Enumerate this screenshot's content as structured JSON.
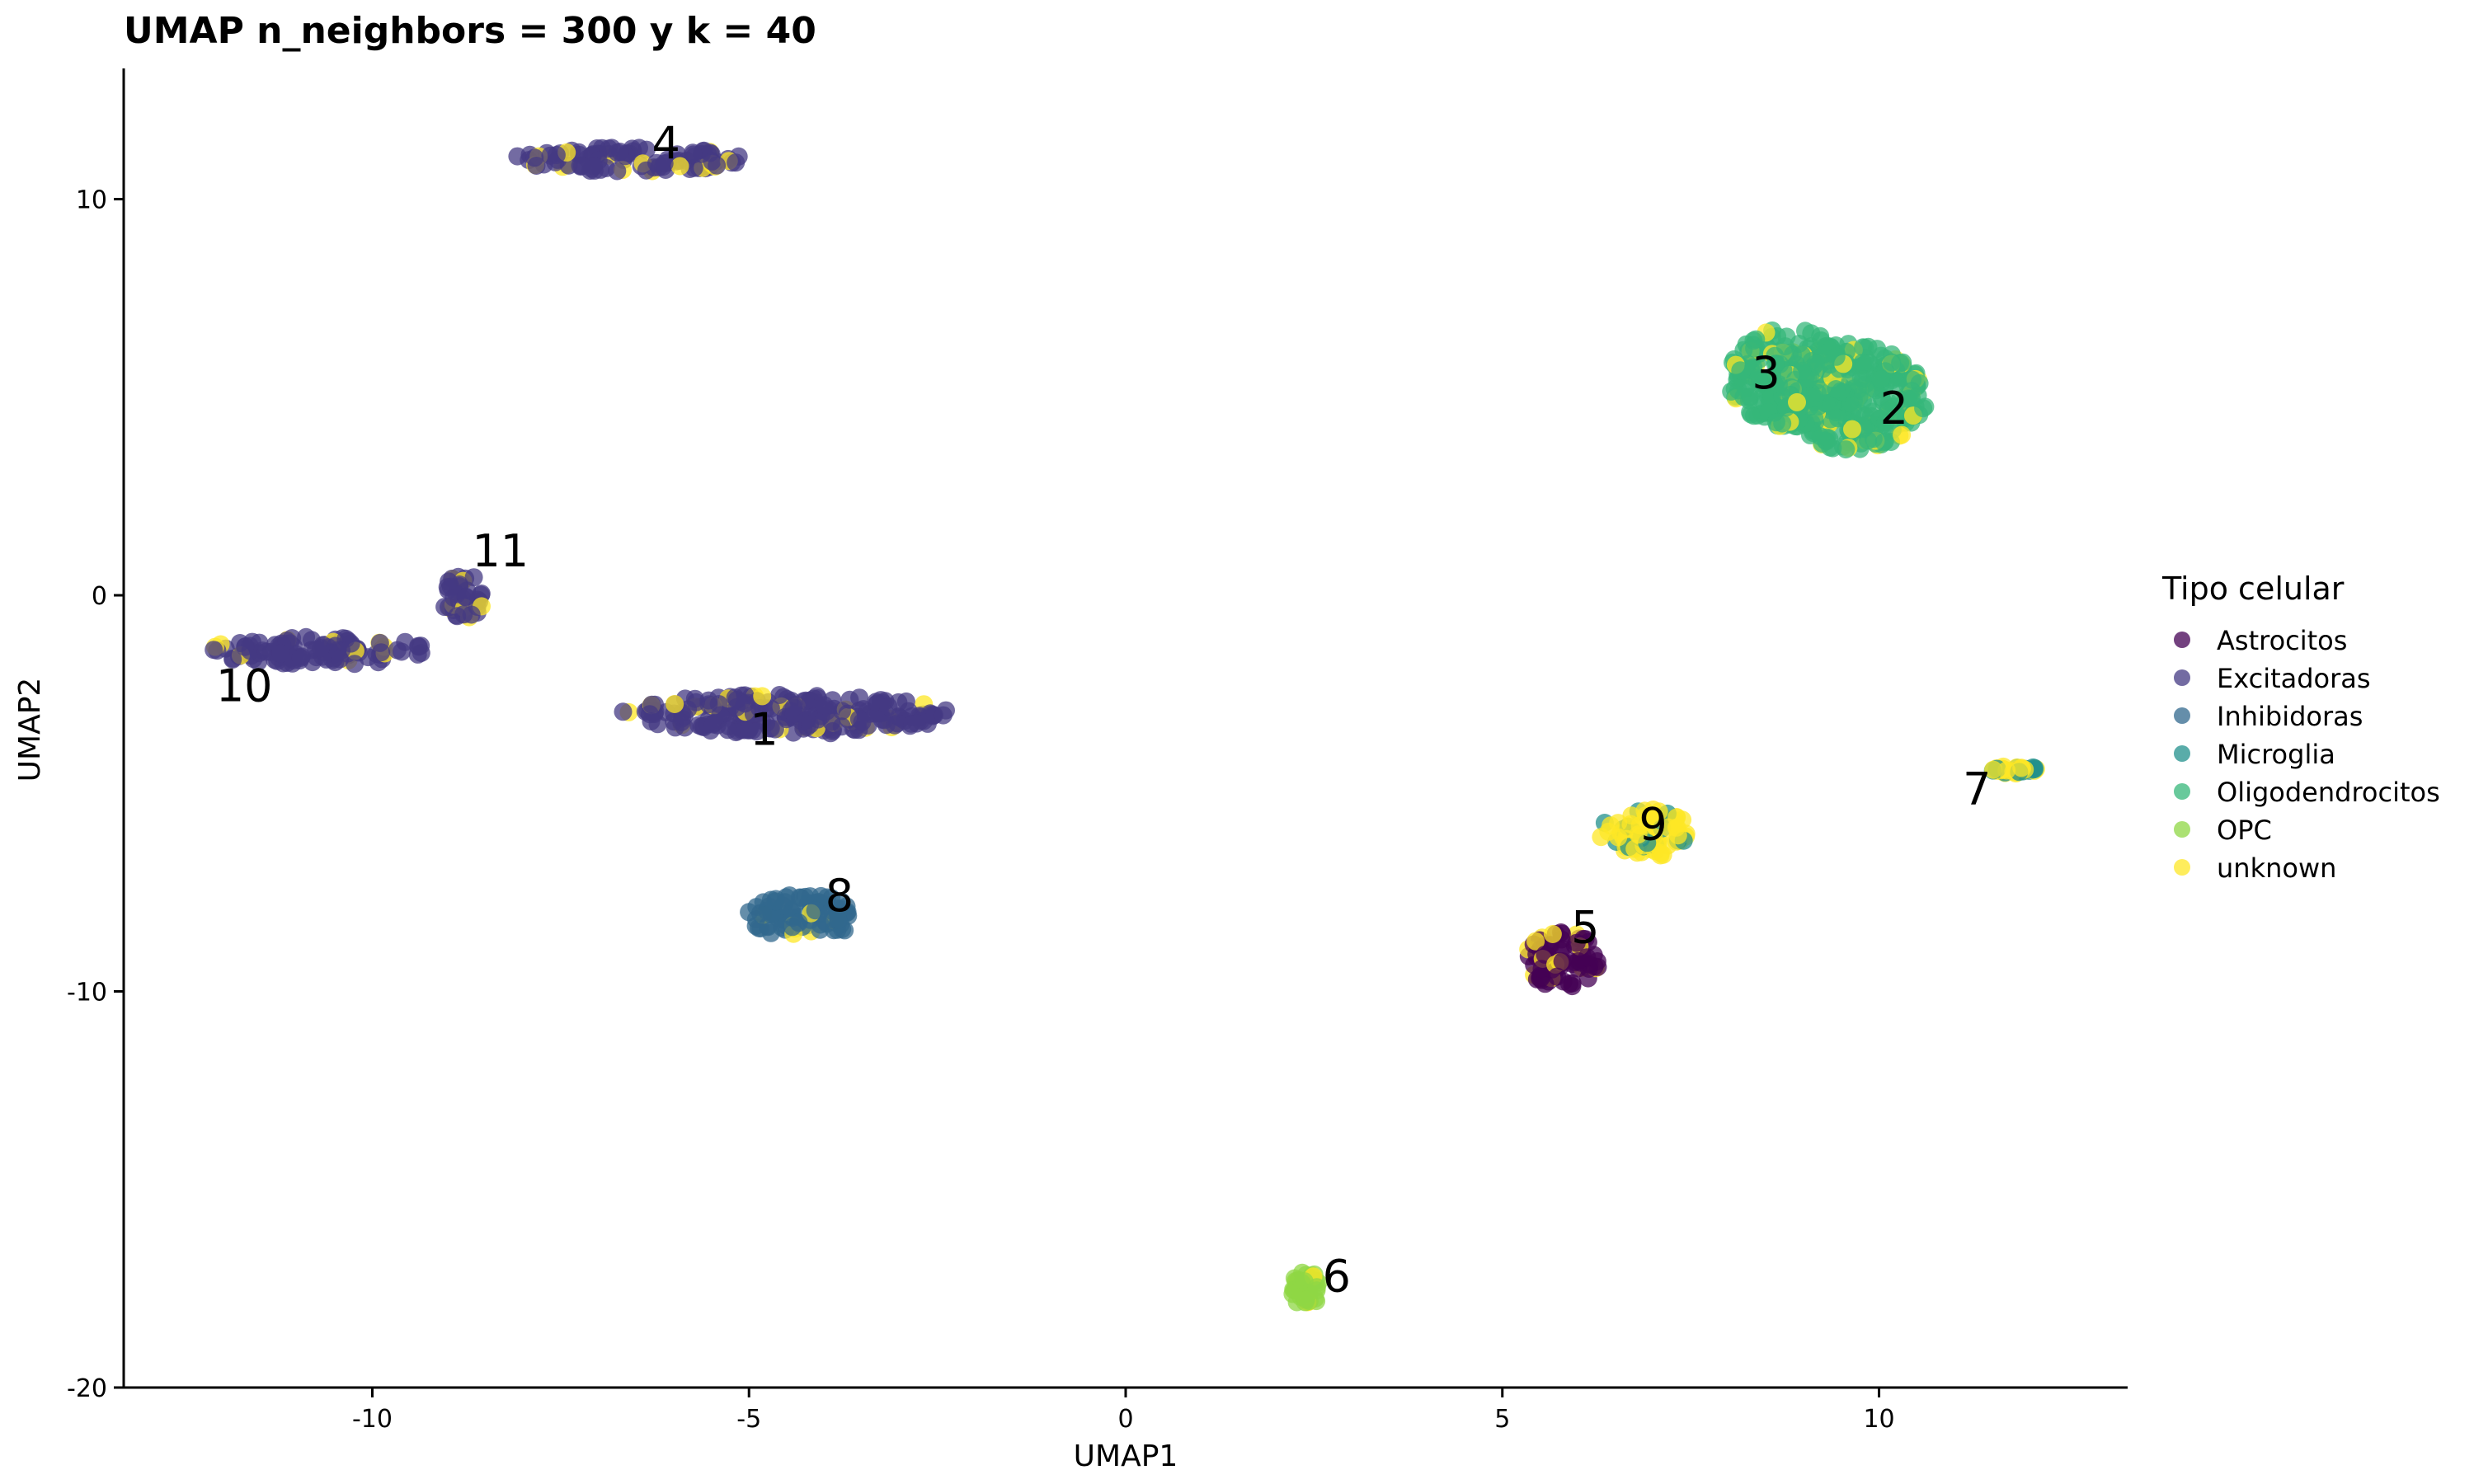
{
  "chart_data": {
    "type": "scatter",
    "title": "UMAP n_neighbors = 300 y k = 40",
    "xlabel": "UMAP1",
    "ylabel": "UMAP2",
    "xlim": [
      -13.3,
      13.3
    ],
    "ylim": [
      -20.0,
      13.3
    ],
    "xticks": [
      -10,
      -5,
      0,
      5,
      10
    ],
    "yticks": [
      -20,
      -10,
      0,
      10
    ],
    "xtick_labels": [
      "-10",
      "-5",
      "0",
      "5",
      "10"
    ],
    "ytick_labels": [
      "-20",
      "-10",
      "0",
      "10"
    ],
    "grid": false,
    "legend": {
      "title": "Tipo celular",
      "position": "right",
      "entries": [
        {
          "name": "Astrocitos",
          "color": "#440154"
        },
        {
          "name": "Excitadoras",
          "color": "#443A83"
        },
        {
          "name": "Inhibidoras",
          "color": "#31688E"
        },
        {
          "name": "Microglia",
          "color": "#21908C"
        },
        {
          "name": "Oligodendrocitos",
          "color": "#35B779"
        },
        {
          "name": "OPC",
          "color": "#8FD744"
        },
        {
          "name": "unknown",
          "color": "#FDE725"
        }
      ]
    },
    "clusters": [
      {
        "label": "1",
        "label_pos": [
          -4.8,
          -3.4
        ],
        "center": [
          -4.5,
          -3.0
        ],
        "spread": [
          4.4,
          1.0
        ],
        "cell_type": "Excitadoras"
      },
      {
        "label": "2",
        "label_pos": [
          10.2,
          4.7
        ],
        "center": [
          9.6,
          5.0
        ],
        "spread": [
          2.1,
          2.7
        ],
        "cell_type": "Oligodendrocitos"
      },
      {
        "label": "3",
        "label_pos": [
          8.5,
          5.6
        ],
        "center": [
          8.8,
          5.5
        ],
        "spread": [
          1.6,
          2.5
        ],
        "cell_type": "Oligodendrocitos"
      },
      {
        "label": "4",
        "label_pos": [
          -6.1,
          11.4
        ],
        "center": [
          -6.6,
          11.0
        ],
        "spread": [
          3.1,
          0.6
        ],
        "cell_type": "Excitadoras"
      },
      {
        "label": "5",
        "label_pos": [
          6.1,
          -8.4
        ],
        "center": [
          5.8,
          -9.2
        ],
        "spread": [
          1.0,
          1.4
        ],
        "cell_type": "Astrocitos"
      },
      {
        "label": "6",
        "label_pos": [
          2.8,
          -17.2
        ],
        "center": [
          2.4,
          -17.5
        ],
        "spread": [
          0.4,
          0.9
        ],
        "cell_type": "OPC"
      },
      {
        "label": "7",
        "label_pos": [
          11.3,
          -4.9
        ],
        "center": [
          11.8,
          -4.4
        ],
        "spread": [
          0.6,
          0.2
        ],
        "cell_type": "unknown"
      },
      {
        "label": "8",
        "label_pos": [
          -3.8,
          -7.6
        ],
        "center": [
          -4.3,
          -8.1
        ],
        "spread": [
          1.5,
          1.1
        ],
        "cell_type": "Inhibidoras"
      },
      {
        "label": "9",
        "label_pos": [
          7.0,
          -5.8
        ],
        "center": [
          6.9,
          -6.0
        ],
        "spread": [
          1.2,
          1.2
        ],
        "cell_type": "unknown"
      },
      {
        "label": "10",
        "label_pos": [
          -11.7,
          -2.3
        ],
        "center": [
          -10.7,
          -1.4
        ],
        "spread": [
          3.0,
          0.7
        ],
        "cell_type": "Excitadoras"
      },
      {
        "label": "11",
        "label_pos": [
          -8.3,
          1.1
        ],
        "center": [
          -8.8,
          0.0
        ],
        "spread": [
          0.6,
          1.2
        ],
        "cell_type": "Excitadoras"
      }
    ]
  }
}
